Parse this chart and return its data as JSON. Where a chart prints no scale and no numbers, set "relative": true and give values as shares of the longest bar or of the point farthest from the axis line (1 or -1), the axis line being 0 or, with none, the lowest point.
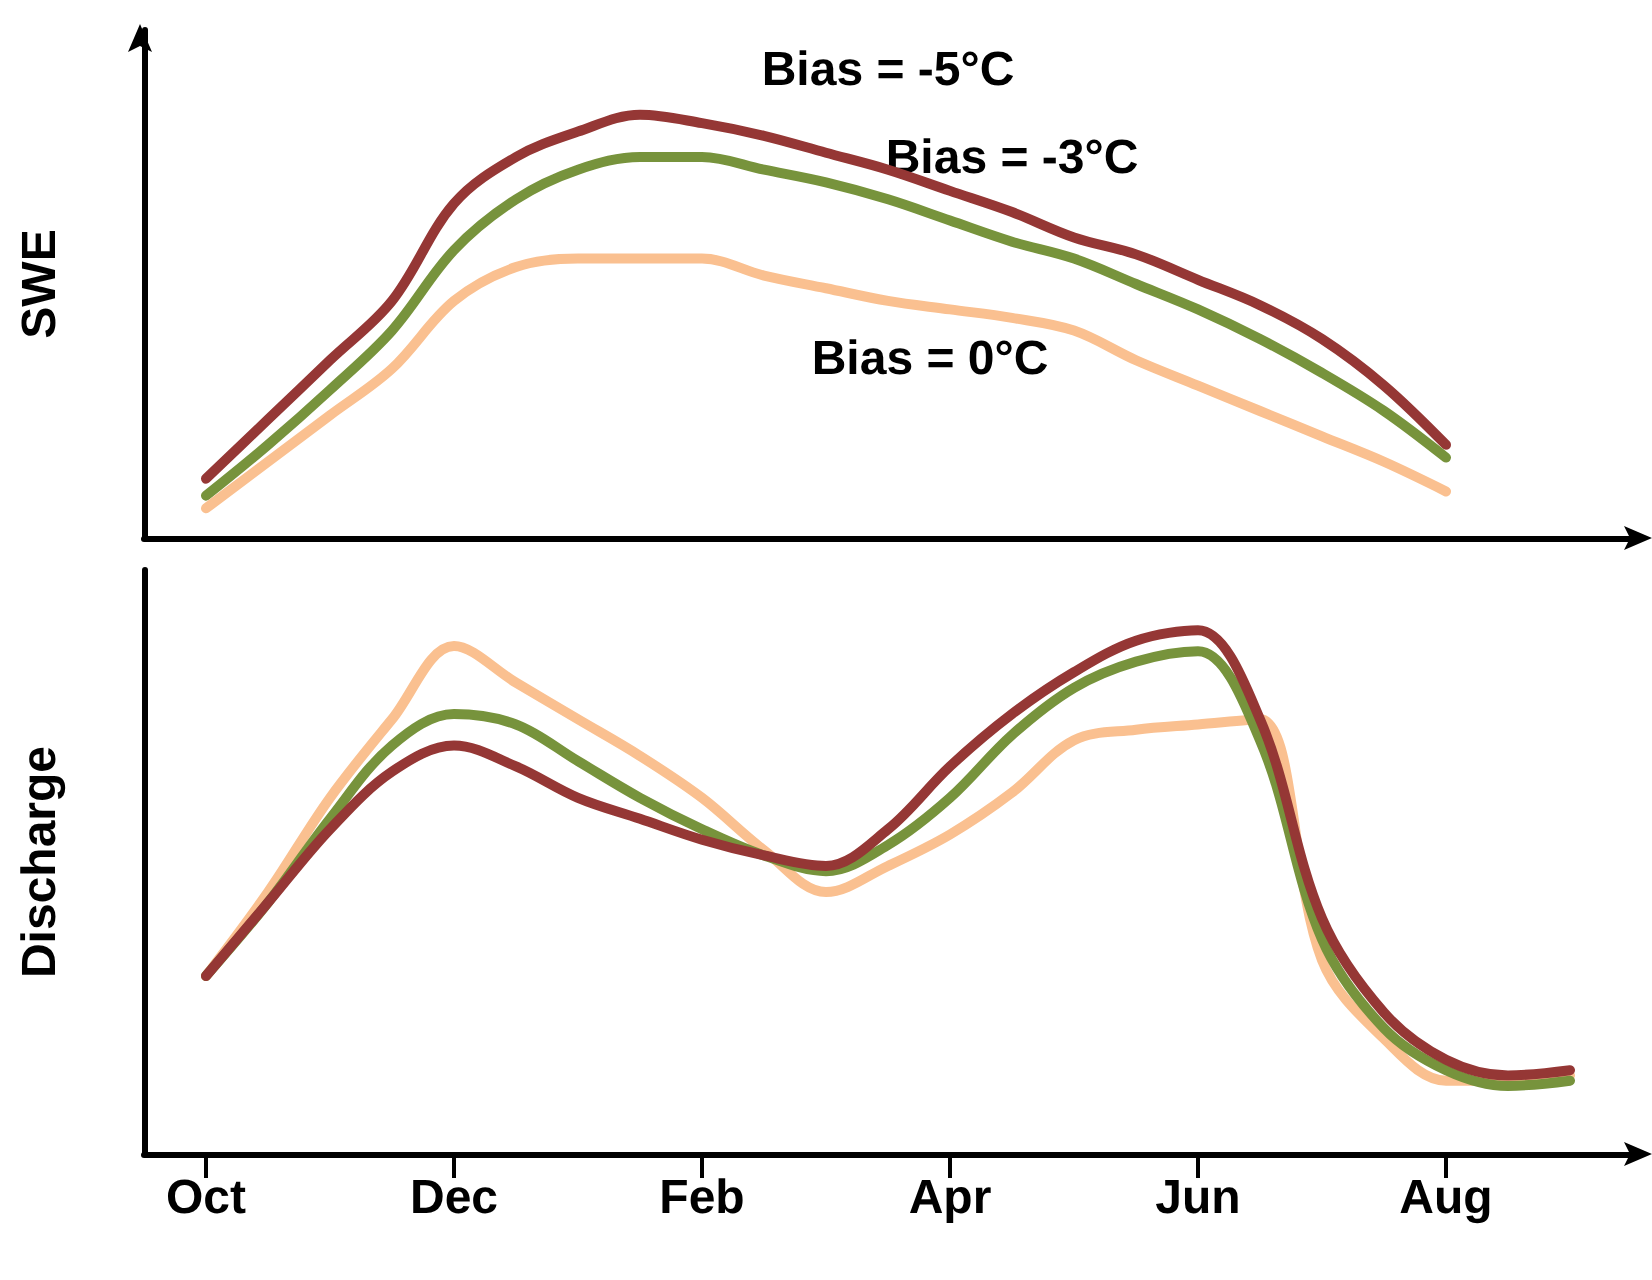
{
  "chart_data": [
    {
      "type": "line",
      "ylabel": "SWE",
      "relative": true,
      "marker": "none",
      "line_style": "solid",
      "categories": [
        null,
        null,
        null,
        null,
        null,
        null,
        null,
        null,
        null,
        null,
        null,
        null,
        null,
        null,
        null,
        null,
        null,
        null,
        null,
        null,
        null,
        null,
        null,
        null,
        null
      ],
      "series": [
        {
          "name": "Bias = -5°C",
          "color": "#953735",
          "values": [
            null,
            0.14,
            0.28,
            0.42,
            0.56,
            0.79,
            0.9,
            0.96,
            1.0,
            0.98,
            0.95,
            0.91,
            0.87,
            0.82,
            0.77,
            0.71,
            0.67,
            0.61,
            0.55,
            0.47,
            0.36,
            0.22,
            null,
            null,
            null
          ]
        },
        {
          "name": "Bias = -3°C",
          "color": "#77933c",
          "values": [
            null,
            0.1,
            0.22,
            0.35,
            0.49,
            0.68,
            0.8,
            0.87,
            0.9,
            0.9,
            0.87,
            0.84,
            0.8,
            0.75,
            0.7,
            0.66,
            0.6,
            0.54,
            0.47,
            0.39,
            0.3,
            0.19,
            null,
            null,
            null
          ]
        },
        {
          "name": "Bias = 0°C",
          "color": "#fac090",
          "values": [
            null,
            0.07,
            0.18,
            0.29,
            0.4,
            0.56,
            0.64,
            0.66,
            0.66,
            0.66,
            0.62,
            0.59,
            0.56,
            0.54,
            0.52,
            0.49,
            0.42,
            0.36,
            0.3,
            0.24,
            0.18,
            0.11,
            null,
            null,
            null
          ]
        }
      ]
    },
    {
      "type": "line",
      "ylabel": "Discharge",
      "relative": true,
      "marker": "none",
      "line_style": "solid",
      "categories": [
        null,
        "Oct",
        null,
        null,
        null,
        "Dec",
        null,
        null,
        null,
        "Feb",
        null,
        null,
        null,
        "Apr",
        null,
        null,
        null,
        "Jun",
        null,
        null,
        null,
        "Aug",
        null,
        null,
        null
      ],
      "series": [
        {
          "color": "#fac090",
          "values": [
            null,
            0.34,
            0.5,
            0.68,
            0.83,
            0.97,
            0.9,
            0.83,
            0.76,
            0.68,
            0.58,
            0.5,
            0.55,
            0.61,
            0.69,
            0.79,
            0.81,
            0.82,
            0.83,
            0.37,
            0.22,
            0.14,
            0.14,
            0.15,
            null
          ]
        },
        {
          "color": "#77933c",
          "values": [
            null,
            0.34,
            0.48,
            0.64,
            0.78,
            0.84,
            0.82,
            0.75,
            0.68,
            0.62,
            0.57,
            0.54,
            0.59,
            0.68,
            0.8,
            0.89,
            0.94,
            0.96,
            0.79,
            0.41,
            0.24,
            0.16,
            0.13,
            0.14,
            null
          ]
        },
        {
          "color": "#953735",
          "values": [
            null,
            0.34,
            0.48,
            0.62,
            0.73,
            0.78,
            0.74,
            0.68,
            0.64,
            0.6,
            0.57,
            0.55,
            0.62,
            0.74,
            0.84,
            0.92,
            0.98,
            1.0,
            0.83,
            0.45,
            0.27,
            0.18,
            0.15,
            0.16,
            null
          ]
        }
      ]
    }
  ]
}
